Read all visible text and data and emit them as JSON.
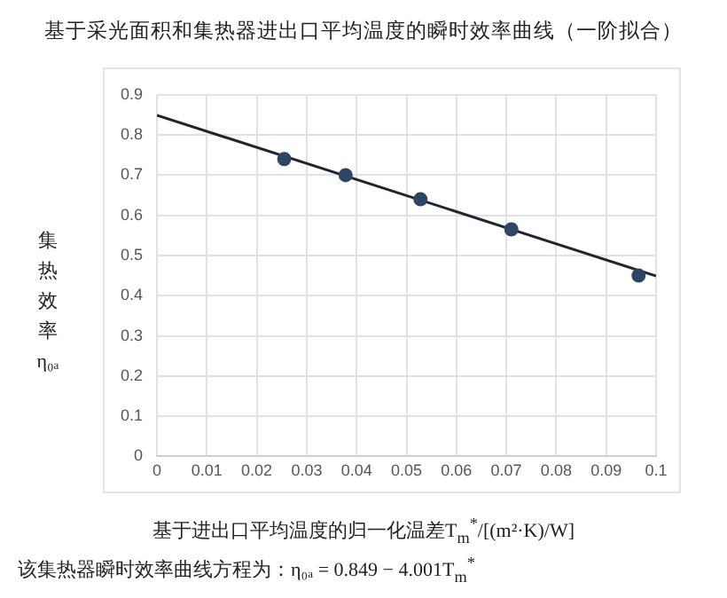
{
  "chart_data": {
    "type": "scatter",
    "title": "基于采光面积和集热器进出口平均温度的瞬时效率曲线（一阶拟合）",
    "xlabel": "基于进出口平均温度的归一化温差T$_{m}$$^{*}$/[(m²·K)/W]",
    "ylabel": "集热效率η₀ₐ",
    "series": [
      {
        "color": "#2f4662",
        "marker": "circle",
        "x": [
          0.0255,
          0.0378,
          0.0528,
          0.071,
          0.0965
        ],
        "values": [
          0.74,
          0.7,
          0.64,
          0.565,
          0.45
        ]
      },
      {
        "type": "line",
        "color": "#1f2630",
        "marker": "none",
        "line_style": "solid",
        "x": [
          0,
          0.1
        ],
        "values": [
          0.849,
          0.449
        ]
      }
    ],
    "xlim": [
      0,
      0.1
    ],
    "xticks": [
      0,
      0.01,
      0.02,
      0.03,
      0.04,
      0.05,
      0.06,
      0.07,
      0.08,
      0.09,
      0.1
    ],
    "ylim": [
      0,
      0.9
    ],
    "yticks": [
      0,
      0.1,
      0.2,
      0.3,
      0.4,
      0.5,
      0.6,
      0.7,
      0.8,
      0.9
    ],
    "grid": true,
    "legend": false,
    "annotations": [
      "该集热器瞬时效率曲线方程为：η₀ₐ = 0.849 − 4.001T$_{m}$$^{*}$"
    ]
  }
}
